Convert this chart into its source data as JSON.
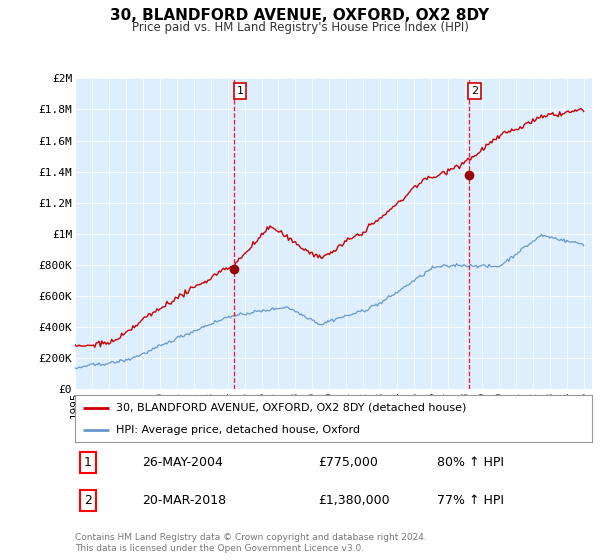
{
  "title": "30, BLANDFORD AVENUE, OXFORD, OX2 8DY",
  "subtitle": "Price paid vs. HM Land Registry's House Price Index (HPI)",
  "plot_bg_color": "#ddeeff",
  "red_line_color": "#cc0000",
  "blue_line_color": "#6699cc",
  "ylim": [
    0,
    2000000
  ],
  "yticks": [
    0,
    200000,
    400000,
    600000,
    800000,
    1000000,
    1200000,
    1400000,
    1600000,
    1800000,
    2000000
  ],
  "ytick_labels": [
    "£0",
    "£200K",
    "£400K",
    "£600K",
    "£800K",
    "£1M",
    "£1.2M",
    "£1.4M",
    "£1.6M",
    "£1.8M",
    "£2M"
  ],
  "vline1_year": 2004.38,
  "vline2_year": 2018.21,
  "legend_line1": "30, BLANDFORD AVENUE, OXFORD, OX2 8DY (detached house)",
  "legend_line2": "HPI: Average price, detached house, Oxford",
  "annotation1_num": "1",
  "annotation1_date": "26-MAY-2004",
  "annotation1_price": "£775,000",
  "annotation1_hpi": "80% ↑ HPI",
  "annotation2_num": "2",
  "annotation2_date": "20-MAR-2018",
  "annotation2_price": "£1,380,000",
  "annotation2_hpi": "77% ↑ HPI",
  "footer": "Contains HM Land Registry data © Crown copyright and database right 2024.\nThis data is licensed under the Open Government Licence v3.0.",
  "sale1_price": 775000,
  "sale2_price": 1380000
}
